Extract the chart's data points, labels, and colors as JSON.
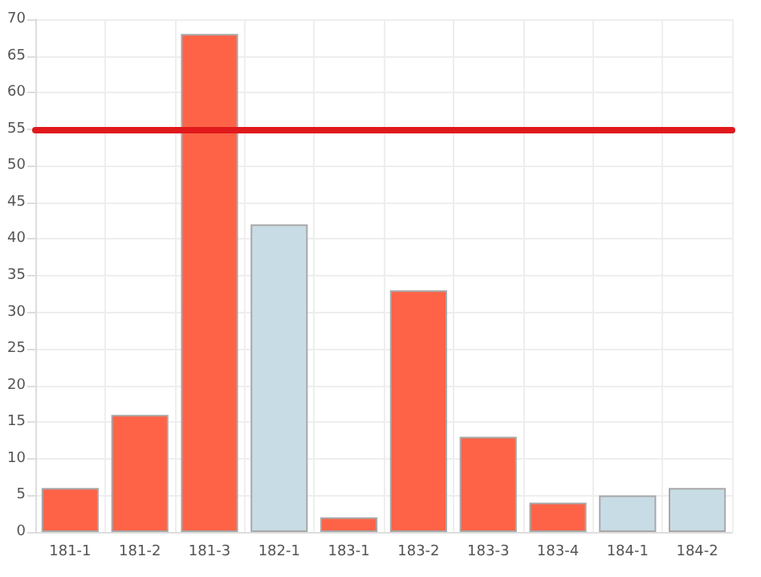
{
  "chart_data": {
    "type": "bar",
    "categories": [
      "181-1",
      "181-2",
      "181-3",
      "182-1",
      "183-1",
      "183-2",
      "183-3",
      "183-4",
      "184-1",
      "184-2"
    ],
    "values": [
      6,
      16,
      68,
      42,
      2,
      33,
      13,
      4,
      5,
      6
    ],
    "colors": [
      "#ff6347",
      "#ff6347",
      "#ff6347",
      "#c8dce6",
      "#ff6347",
      "#ff6347",
      "#ff6347",
      "#ff6347",
      "#c8dce6",
      "#c8dce6"
    ],
    "ylim": [
      0,
      70
    ],
    "yticks": [
      0,
      5,
      10,
      15,
      20,
      25,
      30,
      35,
      40,
      45,
      50,
      55,
      60,
      65,
      70
    ],
    "grid": true,
    "ref_lines": [
      {
        "axis": "y",
        "value": 55,
        "color": "#e0191c",
        "line_style": "solid"
      }
    ]
  }
}
